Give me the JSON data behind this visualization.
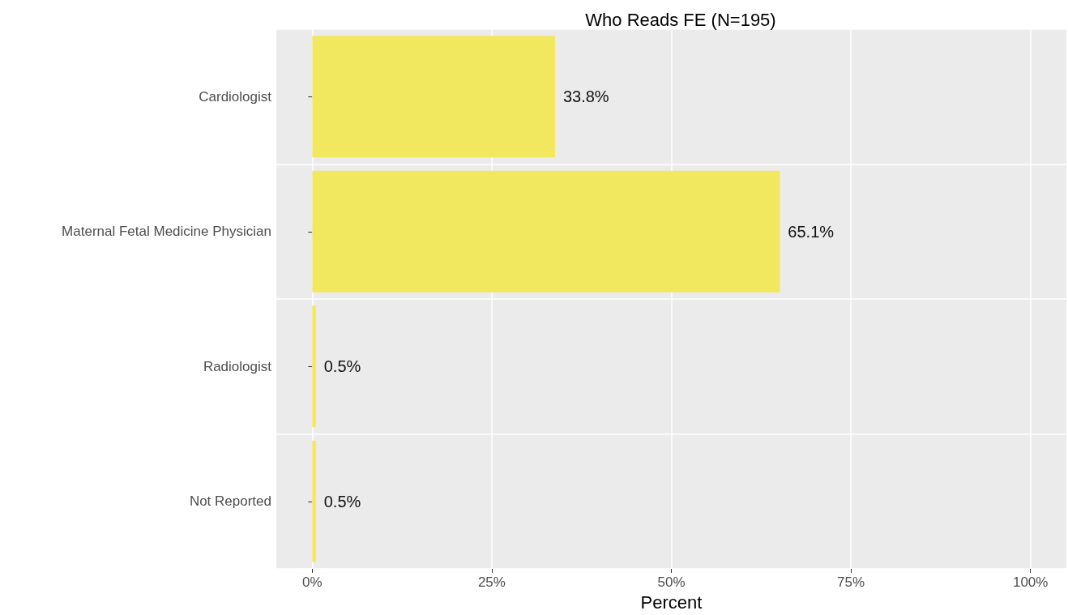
{
  "chart_data": {
    "type": "bar",
    "orientation": "horizontal",
    "title": "Who Reads FE (N=195)",
    "xlabel": "Percent",
    "categories": [
      "Cardiologist",
      "Maternal Fetal Medicine Physician",
      "Radiologist",
      "Not Reported"
    ],
    "values": [
      33.8,
      65.1,
      0.5,
      0.5
    ],
    "value_labels": [
      "33.8%",
      "65.1%",
      "0.5%",
      "0.5%"
    ],
    "color": "#f2e85f",
    "xlim": [
      -5,
      105
    ],
    "xticks": [
      {
        "value": 0,
        "label": "0%"
      },
      {
        "value": 25,
        "label": "25%"
      },
      {
        "value": 50,
        "label": "50%"
      },
      {
        "value": 75,
        "label": "75%"
      },
      {
        "value": 100,
        "label": "100%"
      }
    ],
    "grid": true
  }
}
